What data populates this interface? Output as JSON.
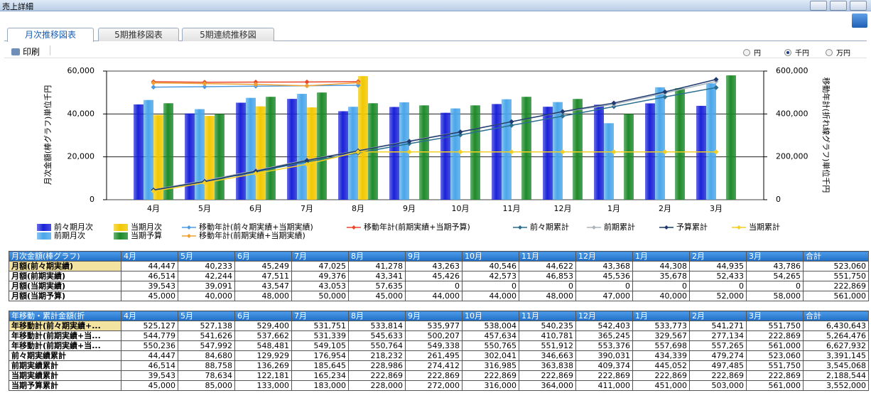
{
  "window": {
    "title": "売上詳細"
  },
  "tabs": [
    "月次推移図表",
    "5期推移図表",
    "5期連続推移図"
  ],
  "toolbar": {
    "print": "印刷",
    "units": [
      "円",
      "千円",
      "万円"
    ],
    "selected_unit": "千円"
  },
  "chart_data": {
    "type": "bar",
    "ylabel": "月次金額(棒グラフ)単位千円",
    "y2label": "移動年計(折れ線グラフ)単位千円",
    "categories": [
      "4月",
      "5月",
      "6月",
      "7月",
      "8月",
      "9月",
      "10月",
      "11月",
      "12月",
      "1月",
      "2月",
      "3月"
    ],
    "ylim": [
      0,
      60000
    ],
    "yticks": [
      0,
      {
        "value": 20000,
        "label": "20,000"
      },
      {
        "value": 40000,
        "label": "40,000"
      },
      {
        "value": 60000,
        "label": "60,000"
      }
    ],
    "y2lim": [
      0,
      600000
    ],
    "y2ticks": [
      0,
      {
        "value": 200000,
        "label": "200,000"
      },
      {
        "value": 400000,
        "label": "400,000"
      },
      {
        "value": 600000,
        "label": "600,000"
      }
    ],
    "grid": true,
    "legend": "bottom",
    "series": [
      {
        "name": "前々期月次",
        "type": "bar",
        "color": "#1a22d8",
        "values": [
          44447,
          40233,
          45249,
          47025,
          41278,
          43263,
          40546,
          44622,
          43368,
          44308,
          44935,
          43786
        ]
      },
      {
        "name": "前期月次",
        "type": "bar",
        "color": "#4aa6ea",
        "values": [
          46514,
          42244,
          47511,
          49376,
          43341,
          45426,
          42573,
          46853,
          45536,
          35678,
          52433,
          54265
        ]
      },
      {
        "name": "当期月次",
        "type": "bar",
        "color": "#f2c800",
        "values": [
          39543,
          39091,
          43547,
          43053,
          57635,
          0,
          0,
          0,
          0,
          0,
          0,
          0
        ]
      },
      {
        "name": "当期予算",
        "type": "bar",
        "color": "#1e8a2a",
        "values": [
          45000,
          40000,
          48000,
          50000,
          45000,
          44000,
          44000,
          48000,
          47000,
          40000,
          52000,
          58000
        ]
      },
      {
        "name": "移動年計(前々期実績+当期実績)",
        "type": "line",
        "axis": "y2",
        "color": "#4f9be0",
        "values": [
          525127,
          527138,
          529400,
          531751,
          533814,
          null,
          null,
          null,
          null,
          null,
          null,
          null
        ]
      },
      {
        "name": "移動年計(前期実績+当期予算)",
        "type": "line",
        "axis": "y2",
        "color": "#e8472a",
        "values": [
          550236,
          547992,
          548481,
          549105,
          550764,
          null,
          null,
          null,
          null,
          null,
          null,
          null
        ]
      },
      {
        "name": "移動年計(前期実績+当期実績)",
        "type": "line",
        "axis": "y2",
        "color": "#f0a030",
        "values": [
          544779,
          541626,
          537662,
          531339,
          545633,
          null,
          null,
          null,
          null,
          null,
          null,
          null
        ]
      },
      {
        "name": "前々期累計",
        "type": "line",
        "axis": "y2",
        "color": "#2b6f8f",
        "values": [
          44447,
          84680,
          129929,
          176954,
          218232,
          261495,
          302041,
          346663,
          390031,
          434339,
          479274,
          523060
        ]
      },
      {
        "name": "前期累計",
        "type": "line",
        "axis": "y2",
        "color": "#aab4be",
        "values": [
          46514,
          88758,
          136269,
          185645,
          228986,
          274412,
          316985,
          363838,
          409374,
          445052,
          497485,
          551750
        ]
      },
      {
        "name": "予算累計",
        "type": "line",
        "axis": "y2",
        "color": "#1f3a6e",
        "values": [
          45000,
          85000,
          133000,
          183000,
          228000,
          272000,
          316000,
          364000,
          411000,
          451000,
          503000,
          561000
        ]
      },
      {
        "name": "当期累計",
        "type": "line",
        "axis": "y2",
        "color": "#f5d020",
        "values": [
          39543,
          78634,
          122181,
          165234,
          222869,
          222869,
          222869,
          222869,
          222869,
          222869,
          222869,
          222869
        ]
      }
    ]
  },
  "monthly_table": {
    "header": [
      "月次金額(棒グラフ)",
      "4月",
      "5月",
      "6月",
      "7月",
      "8月",
      "9月",
      "10月",
      "11月",
      "12月",
      "1月",
      "2月",
      "3月",
      "合計"
    ],
    "rows": [
      [
        "月額(前々期実績)",
        "44,447",
        "40,233",
        "45,249",
        "47,025",
        "41,278",
        "43,263",
        "40,546",
        "44,622",
        "43,368",
        "44,308",
        "44,935",
        "43,786",
        "523,060"
      ],
      [
        "月額(前期実績)",
        "46,514",
        "42,244",
        "47,511",
        "49,376",
        "43,341",
        "45,426",
        "42,573",
        "46,853",
        "45,536",
        "35,678",
        "52,433",
        "54,265",
        "551,750"
      ],
      [
        "月額(当期実績)",
        "39,543",
        "39,091",
        "43,547",
        "43,053",
        "57,635",
        "0",
        "0",
        "0",
        "0",
        "0",
        "0",
        "0",
        "222,869"
      ],
      [
        "月額(当期予算)",
        "45,000",
        "40,000",
        "48,000",
        "50,000",
        "45,000",
        "44,000",
        "44,000",
        "48,000",
        "47,000",
        "40,000",
        "52,000",
        "58,000",
        "561,000"
      ]
    ]
  },
  "cumulative_table": {
    "header": [
      "年移動・累計金額(折",
      "4月",
      "5月",
      "6月",
      "7月",
      "8月",
      "9月",
      "10月",
      "11月",
      "12月",
      "1月",
      "2月",
      "3月",
      "合計"
    ],
    "rows": [
      [
        "年移動計(前々期実績+...",
        "525,127",
        "527,138",
        "529,400",
        "531,751",
        "533,814",
        "535,977",
        "538,004",
        "540,235",
        "542,403",
        "533,773",
        "541,271",
        "551,750",
        "6,430,643"
      ],
      [
        "年移動計(前期実績+当...",
        "544,779",
        "541,626",
        "537,662",
        "531,339",
        "545,633",
        "500,207",
        "457,634",
        "410,781",
        "365,245",
        "329,567",
        "277,134",
        "222,869",
        "5,264,476"
      ],
      [
        "年移動計(前期実績+当...",
        "550,236",
        "547,992",
        "548,481",
        "549,105",
        "550,764",
        "549,338",
        "550,765",
        "551,912",
        "553,376",
        "557,698",
        "557,265",
        "561,000",
        "6,627,932"
      ],
      [
        "前々期実績累計",
        "44,447",
        "84,680",
        "129,929",
        "176,954",
        "218,232",
        "261,495",
        "302,041",
        "346,663",
        "390,031",
        "434,339",
        "479,274",
        "523,060",
        "3,391,145"
      ],
      [
        "前期実績累計",
        "46,514",
        "88,758",
        "136,269",
        "185,645",
        "228,986",
        "274,412",
        "316,985",
        "363,838",
        "409,374",
        "445,052",
        "497,485",
        "551,750",
        "3,545,068"
      ],
      [
        "当期実績累計",
        "39,543",
        "78,634",
        "122,181",
        "165,234",
        "222,869",
        "222,869",
        "222,869",
        "222,869",
        "222,869",
        "222,869",
        "222,869",
        "222,869",
        "2,188,544"
      ],
      [
        "当期予算累計",
        "45,000",
        "85,000",
        "133,000",
        "183,000",
        "228,000",
        "272,000",
        "316,000",
        "364,000",
        "411,000",
        "451,000",
        "503,000",
        "561,000",
        "3,552,000"
      ]
    ]
  }
}
